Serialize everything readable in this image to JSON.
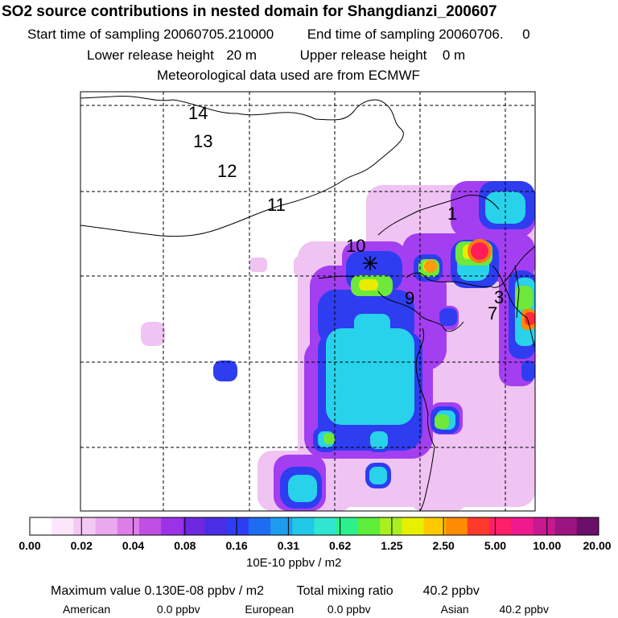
{
  "header": {
    "title": "SO2 source contributions in nested domain for Shangdianzi_200607",
    "start_label": "Start time of sampling",
    "start_value": "20060705.210000",
    "end_label": "End time of sampling",
    "end_value": "20060706.     0",
    "lower_label": "Lower release height",
    "lower_value": "20 m",
    "upper_label": "Upper release height",
    "upper_value": "0 m",
    "met_text": "Meteorological data used are from ECMWF"
  },
  "map": {
    "region_labels": [
      "14",
      "13",
      "12",
      "11",
      "10",
      "1",
      "9",
      "3",
      "7"
    ],
    "station_marker": "asterisk-star"
  },
  "colorbar": {
    "colors": [
      "#ffffff",
      "#fbe6fb",
      "#f3c9f3",
      "#eaa9ee",
      "#dd7ee8",
      "#c04fe4",
      "#9c32e8",
      "#6d28e0",
      "#4a2ee6",
      "#2f3df0",
      "#1e6cf2",
      "#1c9df0",
      "#22c8e8",
      "#30e6d0",
      "#2bf08c",
      "#5cee3a",
      "#a8f020",
      "#e8f000",
      "#ffc800",
      "#ff8c00",
      "#ff3a2c",
      "#ff1e6a",
      "#ee1a8e",
      "#c81890",
      "#9c1480",
      "#6a0f6a"
    ],
    "tick_labels": [
      "0.00",
      "0.02",
      "0.04",
      "0.08",
      "0.16",
      "0.31",
      "0.62",
      "1.25",
      "2.50",
      "5.00",
      "10.00",
      "20.00"
    ],
    "units": "10E-10 ppbv / m2"
  },
  "stats": {
    "max_label": "Maximum value",
    "max_value": "0.130E-08 ppbv / m2",
    "total_label": "Total mixing ratio",
    "total_value": "40.2 ppbv",
    "american_label": "American",
    "american_value": "0.0 ppbv",
    "european_label": "European",
    "european_value": "0.0 ppbv",
    "asian_label": "Asian",
    "asian_value": "40.2 ppbv"
  }
}
